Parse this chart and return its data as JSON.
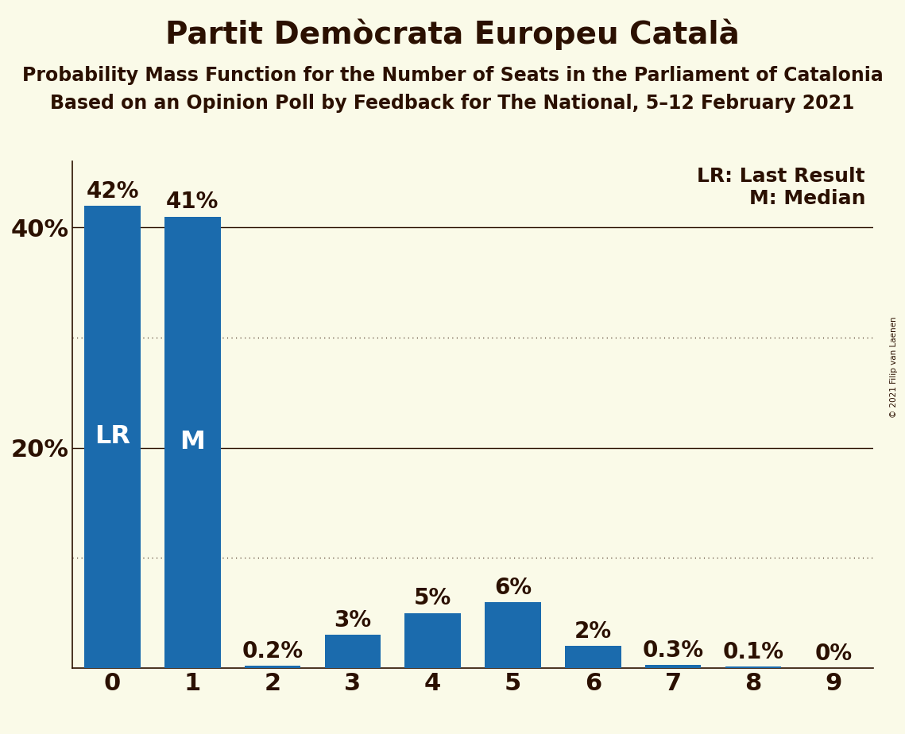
{
  "title": "Partit Demòcrata Europeu Català",
  "subtitle1": "Probability Mass Function for the Number of Seats in the Parliament of Catalonia",
  "subtitle2": "Based on an Opinion Poll by Feedback for The National, 5–12 February 2021",
  "copyright": "© 2021 Filip van Laenen",
  "categories": [
    0,
    1,
    2,
    3,
    4,
    5,
    6,
    7,
    8,
    9
  ],
  "values": [
    0.42,
    0.41,
    0.002,
    0.03,
    0.05,
    0.06,
    0.02,
    0.003,
    0.001,
    0.0
  ],
  "bar_labels": [
    "42%",
    "41%",
    "0.2%",
    "3%",
    "5%",
    "6%",
    "2%",
    "0.3%",
    "0.1%",
    "0%"
  ],
  "bar_inner_labels": [
    "LR",
    "M",
    "",
    "",
    "",
    "",
    "",
    "",
    "",
    ""
  ],
  "bar_color": "#1B6BAD",
  "background_color": "#FAFAE8",
  "text_color": "#2B1000",
  "bar_label_color": "#2B1000",
  "inner_label_color": "#FFFFFF",
  "legend_lr": "LR: Last Result",
  "legend_m": "M: Median",
  "ylim": [
    0,
    0.46
  ],
  "yticks": [
    0.0,
    0.2,
    0.4
  ],
  "ytick_labels": [
    "",
    "20%",
    "40%"
  ],
  "solid_gridlines": [
    0.2,
    0.4
  ],
  "dotted_gridlines": [
    0.1,
    0.3
  ],
  "title_fontsize": 28,
  "subtitle_fontsize": 17,
  "tick_fontsize": 22,
  "bar_label_fontsize": 20,
  "inner_label_fontsize": 23,
  "legend_fontsize": 18
}
